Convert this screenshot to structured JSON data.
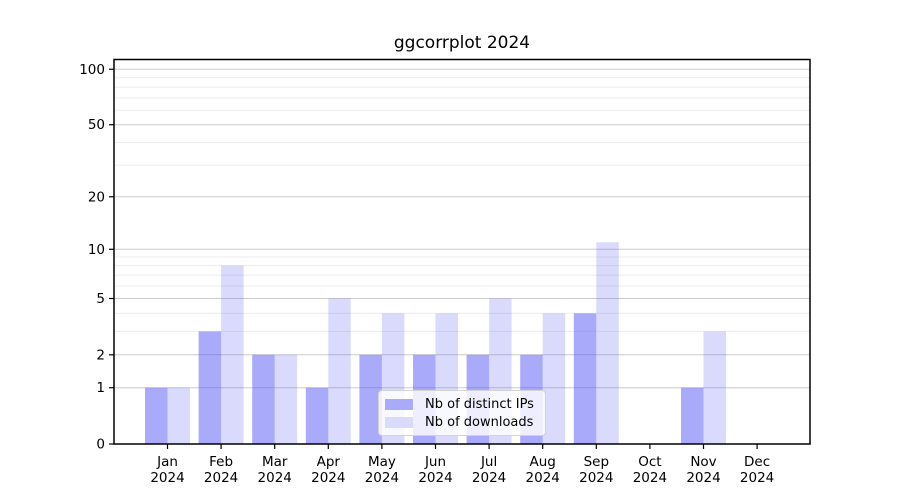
{
  "chart_data": {
    "type": "bar",
    "title": "ggcorrplot 2024",
    "categories": [
      "Jan 2024",
      "Feb 2024",
      "Mar 2024",
      "Apr 2024",
      "May 2024",
      "Jun 2024",
      "Jul 2024",
      "Aug 2024",
      "Sep 2024",
      "Oct 2024",
      "Nov 2024",
      "Dec 2024"
    ],
    "series": [
      {
        "name": "Nb of distinct IPs",
        "color": "#5555f5",
        "opacity": 0.5,
        "values": [
          1,
          3,
          2,
          1,
          2,
          2,
          2,
          2,
          4,
          0,
          1,
          0
        ]
      },
      {
        "name": "Nb of downloads",
        "color": "#5555f5",
        "opacity": 0.22,
        "values": [
          1,
          8,
          2,
          5,
          4,
          4,
          5,
          4,
          11,
          0,
          3,
          0
        ]
      }
    ],
    "y_axis": {
      "scale": "log1p",
      "major_ticks": [
        0,
        1,
        2,
        5,
        10,
        20,
        50,
        100
      ],
      "minor_ticks": [
        3,
        4,
        6,
        7,
        8,
        9,
        30,
        40,
        60,
        70,
        80,
        90
      ],
      "range": [
        0,
        113
      ]
    },
    "x_axis": {
      "tick_label_lines": 2
    },
    "legend": {
      "location": "lower center"
    },
    "grid": {
      "major_color": "#cbcbcb",
      "minor_color": "#ececec"
    },
    "axis_color": "#000000",
    "background_color": "#ffffff"
  }
}
